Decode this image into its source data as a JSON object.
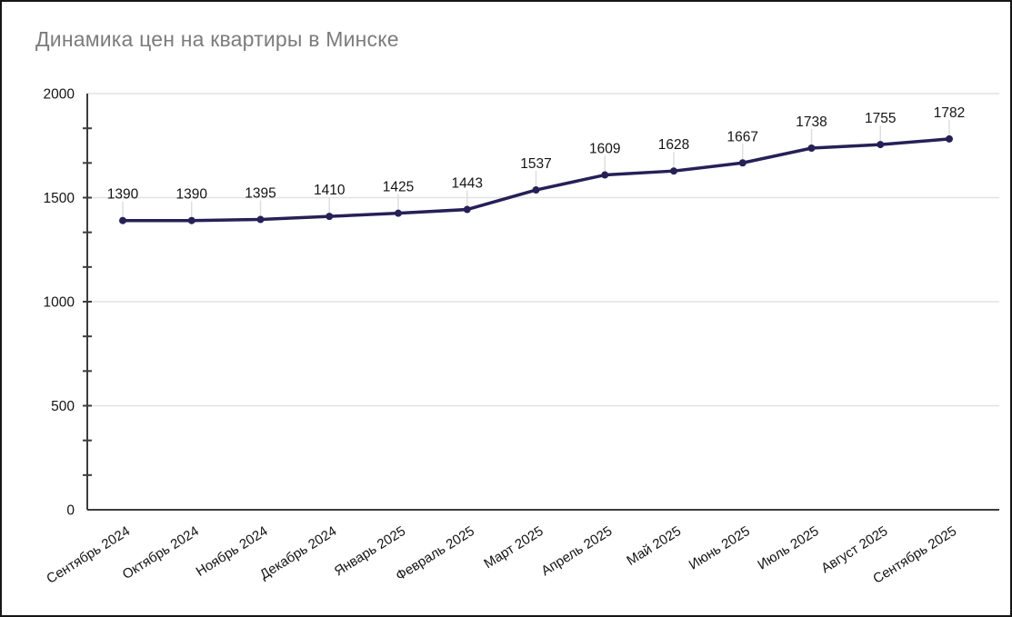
{
  "chart": {
    "title": "Динамика цен на квартиры в Минске",
    "colors": {
      "title": "#7c7c7c",
      "line": "#262057",
      "marker": "#262057",
      "gridline": "#e2e2e2",
      "axis": "#3c3c3c",
      "tick": "#3c3c3c",
      "leader_line": "#dcdcdc",
      "value_label": "#141414",
      "axis_label": "#141414",
      "background": "#ffffff",
      "frame_border": "#161616"
    }
  },
  "chart_data": {
    "type": "line",
    "title": "Динамика цен на квартиры в Минске",
    "categories": [
      "Сентябрь 2024",
      "Октябрь 2024",
      "Ноябрь 2024",
      "Декабрь 2024",
      "Январь 2025",
      "Февраль 2025",
      "Март 2025",
      "Апрель 2025",
      "Май 2025",
      "Июнь 2025",
      "Июль 2025",
      "Август 2025",
      "Сентябрь 2025"
    ],
    "values": [
      1390,
      1390,
      1395,
      1410,
      1425,
      1443,
      1537,
      1609,
      1628,
      1667,
      1738,
      1755,
      1782
    ],
    "xlabel": "",
    "ylabel": "",
    "ylim": [
      0,
      2000
    ],
    "y_ticks": [
      0,
      500,
      1000,
      1500,
      2000
    ],
    "minor_ticks_per_major": 3,
    "grid": true,
    "legend": "none",
    "data_labels": true,
    "marker": "circle",
    "x_label_rotation_deg": -32
  }
}
